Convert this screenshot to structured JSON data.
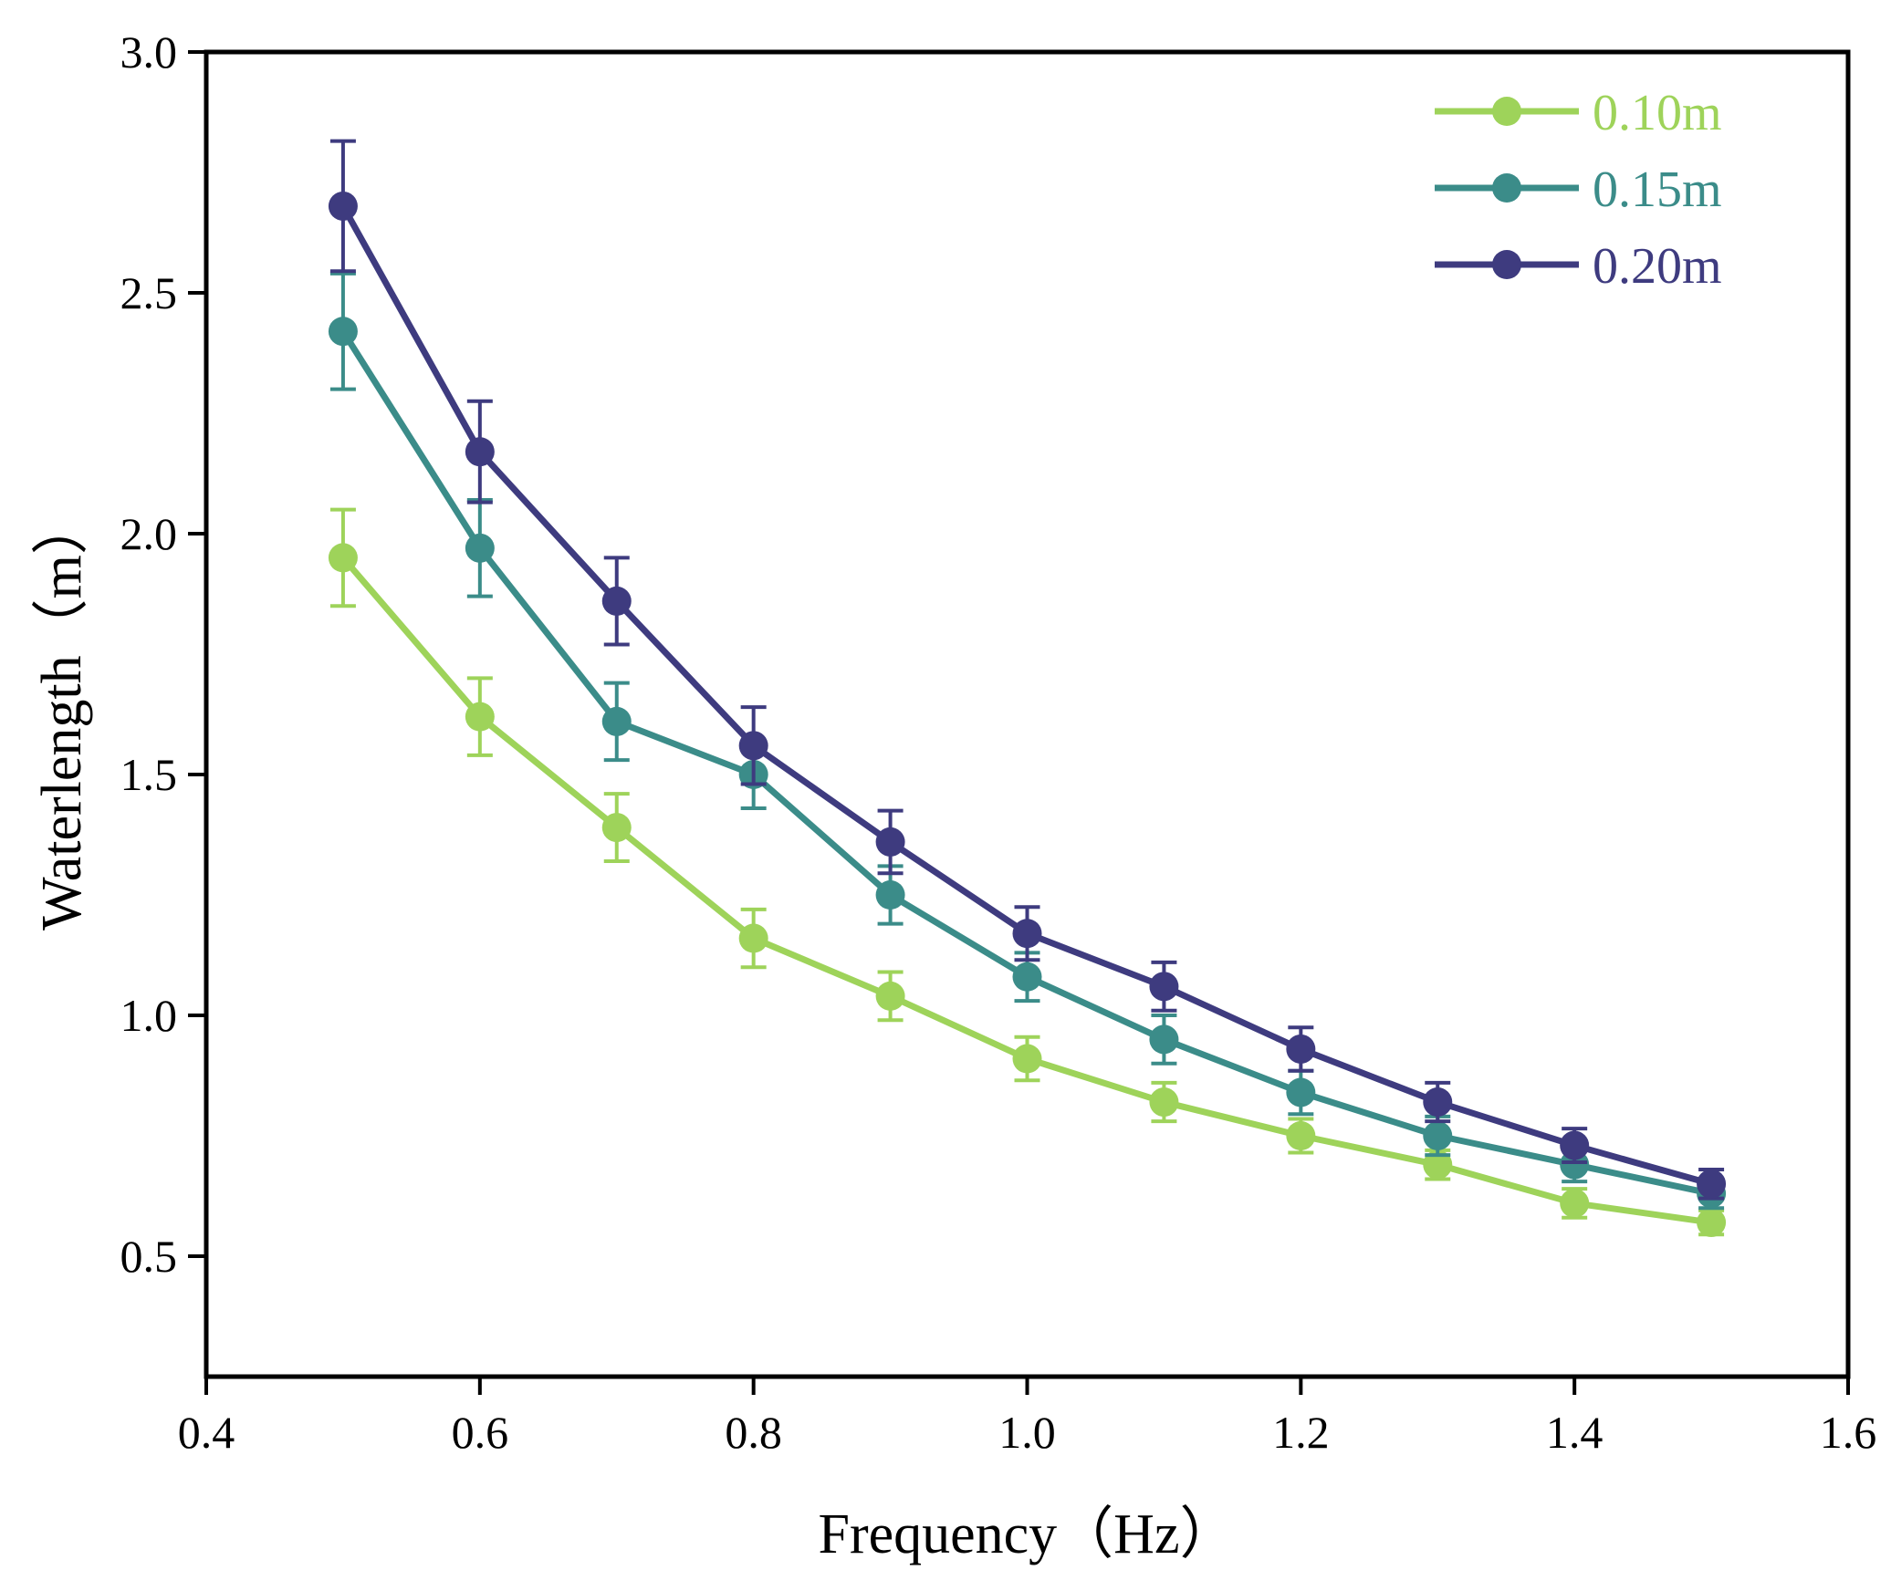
{
  "chart_data": {
    "type": "line",
    "title": "",
    "xlabel": "Frequency（Hz）",
    "ylabel": "Waterlength（m）",
    "xlim": [
      0.4,
      1.6
    ],
    "ylim": [
      0.25,
      3.0
    ],
    "xticks": [
      0.4,
      0.6,
      0.8,
      1.0,
      1.2,
      1.4,
      1.6
    ],
    "xtick_labels": [
      "0.4",
      "0.6",
      "0.8",
      "1.0",
      "1.2",
      "1.4",
      "1.6"
    ],
    "yticks": [
      0.5,
      1.0,
      1.5,
      2.0,
      2.5,
      3.0
    ],
    "ytick_labels": [
      "0.5",
      "1.0",
      "1.5",
      "2.0",
      "2.5",
      "3.0"
    ],
    "grid": false,
    "legend_position": "top-right",
    "x": [
      0.5,
      0.6,
      0.7,
      0.8,
      0.9,
      1.0,
      1.1,
      1.2,
      1.3,
      1.4,
      1.5
    ],
    "series": [
      {
        "name": "0.10m",
        "color": "#9ed35a",
        "values": [
          1.95,
          1.62,
          1.39,
          1.16,
          1.04,
          0.91,
          0.82,
          0.75,
          0.69,
          0.61,
          0.57
        ],
        "errors": [
          0.1,
          0.08,
          0.07,
          0.06,
          0.05,
          0.045,
          0.04,
          0.035,
          0.03,
          0.03,
          0.025
        ]
      },
      {
        "name": "0.15m",
        "color": "#3b8c89",
        "values": [
          2.42,
          1.97,
          1.61,
          1.5,
          1.25,
          1.08,
          0.95,
          0.84,
          0.75,
          0.69,
          0.63
        ],
        "errors": [
          0.12,
          0.1,
          0.08,
          0.07,
          0.06,
          0.05,
          0.05,
          0.045,
          0.04,
          0.035,
          0.03
        ]
      },
      {
        "name": "0.20m",
        "color": "#3e3b7f",
        "values": [
          2.68,
          2.17,
          1.86,
          1.56,
          1.36,
          1.17,
          1.06,
          0.93,
          0.82,
          0.73,
          0.65
        ],
        "errors": [
          0.135,
          0.105,
          0.09,
          0.08,
          0.065,
          0.055,
          0.05,
          0.045,
          0.04,
          0.035,
          0.03
        ]
      }
    ]
  }
}
